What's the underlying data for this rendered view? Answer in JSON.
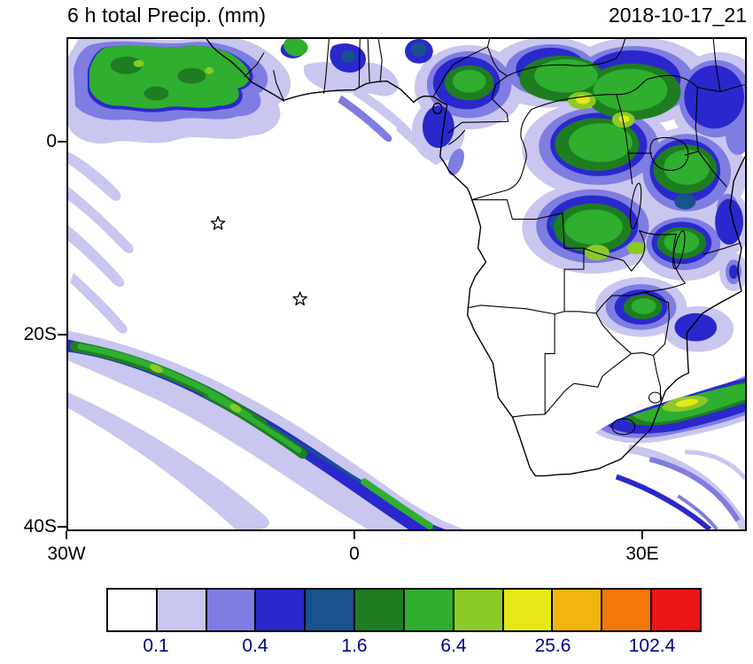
{
  "header": {
    "title": "6 h total Precip. (mm)",
    "datetime": "2018-10-17_21"
  },
  "axes": {
    "y_labels": [
      "0",
      "20S",
      "40S"
    ],
    "x_labels": [
      "30W",
      "0",
      "30E"
    ]
  },
  "colorbar": {
    "colors": [
      "#ffffff",
      "#c9c6ef",
      "#7f7ce2",
      "#2a28cc",
      "#17518e",
      "#1e7d21",
      "#2fae30",
      "#8bc926",
      "#e6e817",
      "#f0b310",
      "#f1760b",
      "#ea1515"
    ],
    "labels": [
      "0.1",
      "0.4",
      "1.6",
      "6.4",
      "25.6",
      "102.4"
    ],
    "label_color": "#00008b"
  },
  "chart_data": {
    "type": "heatmap",
    "title": "6 h total Precip. (mm)",
    "timestamp": "2018-10-17_21",
    "units": "mm",
    "projection": "cylindrical lat-lon over Africa and South Atlantic",
    "lon_range": [
      -30,
      41
    ],
    "lat_range": [
      -40.5,
      11
    ],
    "x_ticks": [
      {
        "lon": -30,
        "label": "30W"
      },
      {
        "lon": 0,
        "label": "0"
      },
      {
        "lon": 30,
        "label": "30E"
      }
    ],
    "y_ticks": [
      {
        "lat": 0,
        "label": "0"
      },
      {
        "lat": -20,
        "label": "20S"
      },
      {
        "lat": -40,
        "label": "40S"
      }
    ],
    "contour_levels_mm": [
      0.1,
      0.2,
      0.4,
      0.8,
      1.6,
      3.2,
      6.4,
      12.8,
      25.6,
      51.2,
      102.4
    ],
    "labeled_levels_mm": [
      0.1,
      0.4,
      1.6,
      6.4,
      25.6,
      102.4
    ],
    "palette": [
      "#ffffff",
      "#c9c6ef",
      "#7f7ce2",
      "#2a28cc",
      "#17518e",
      "#1e7d21",
      "#2fae30",
      "#8bc926",
      "#e6e817",
      "#f0b310",
      "#f1760b",
      "#ea1515"
    ],
    "markers": [
      {
        "type": "star",
        "lon": -14.3,
        "lat": -8.4
      },
      {
        "type": "star",
        "lon": -5.7,
        "lat": -16.3
      }
    ],
    "precip_features": [
      {
        "region": "Guinea coast and eastern tropical Atlantic (25W-8W, 4N-11N)",
        "max_level_mm": 25.6
      },
      {
        "region": "Gulf of Guinea coast, Togo/Benin/Nigeria (3W-8E, 3N-9N)",
        "max_level_mm": 6.4
      },
      {
        "region": "Cameroon, CAR, Congo basin and East Africa (8E-41E, 8S-11N)",
        "max_level_mm": 51.2
      },
      {
        "region": "Angola/Zambia/DR Congo border area (20E-28E, 8S-14S)",
        "max_level_mm": 25.6
      },
      {
        "region": "Zimbabwe/Mozambique patches (26E-36E, 14S-20S)",
        "max_level_mm": 6.4
      },
      {
        "region": "South Africa east coast band (25E-41E, 27S-33S)",
        "max_level_mm": 25.6
      },
      {
        "region": "South Atlantic cold-front band from 30W,32S to 10E,40S",
        "max_level_mm": 12.8
      },
      {
        "region": "South-west Indian Ocean arcs, bottom-right corner",
        "max_level_mm": 1.6
      }
    ]
  }
}
